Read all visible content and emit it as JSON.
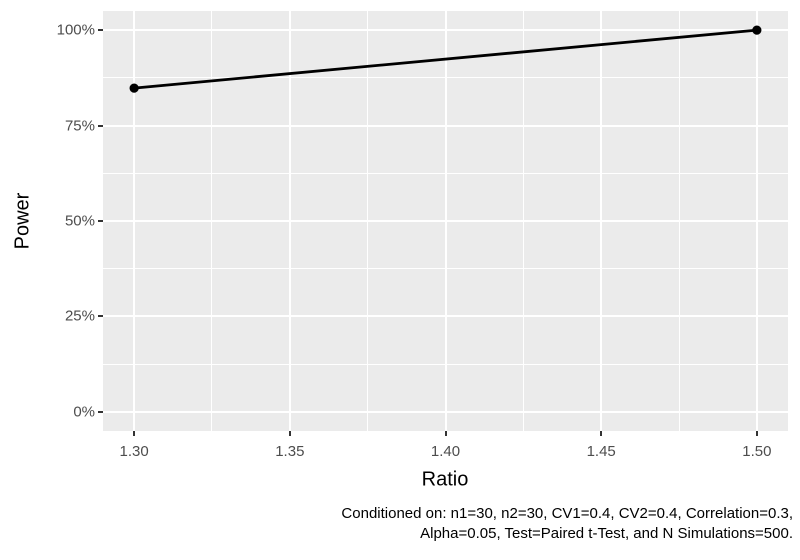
{
  "figure": {
    "y_axis_title": "Power",
    "x_axis_title": "Ratio",
    "caption_lines": [
      "Conditioned on: n1=30, n2=30, CV1=0.4, CV2=0.4, Correlation=0.3,",
      "Alpha=0.05, Test=Paired t-Test, and N Simulations=500."
    ]
  },
  "chart_data": {
    "type": "line",
    "title": "",
    "xlabel": "Ratio",
    "ylabel": "Power",
    "series": [
      {
        "name": "Power",
        "x": [
          1.3,
          1.5
        ],
        "y": [
          0.848,
          1.0
        ]
      }
    ],
    "xlim": [
      1.3,
      1.5
    ],
    "ylim": [
      0,
      1.0
    ],
    "x_ticks": {
      "values": [
        1.3,
        1.35,
        1.4,
        1.45,
        1.5
      ],
      "labels": [
        "1.30",
        "1.35",
        "1.40",
        "1.45",
        "1.50"
      ]
    },
    "y_ticks": {
      "values": [
        0,
        0.25,
        0.5,
        0.75,
        1.0
      ],
      "labels": [
        "0%",
        "25%",
        "50%",
        "75%",
        "100%"
      ]
    },
    "x_minor": [
      1.325,
      1.375,
      1.425,
      1.475
    ],
    "y_minor": [
      0.125,
      0.375,
      0.625,
      0.875
    ],
    "axis_expansion": 0.05,
    "grid": "major+minor",
    "legend_position": "none",
    "theme": "ggplot2-gray",
    "marker": "filled-circle",
    "caption": "Conditioned on: n1=30, n2=30, CV1=0.4, CV2=0.4, Correlation=0.3, Alpha=0.05, Test=Paired t-Test, and N Simulations=500."
  },
  "style": {
    "page_bg": "#FFFFFF",
    "panel_bg": "#EBEBEB",
    "grid_color": "#FFFFFF",
    "axis_text_color": "#4D4D4D",
    "tick_mark_color": "#333333",
    "title_color": "#000000",
    "caption_color": "#000000",
    "series_color": "#000000"
  }
}
